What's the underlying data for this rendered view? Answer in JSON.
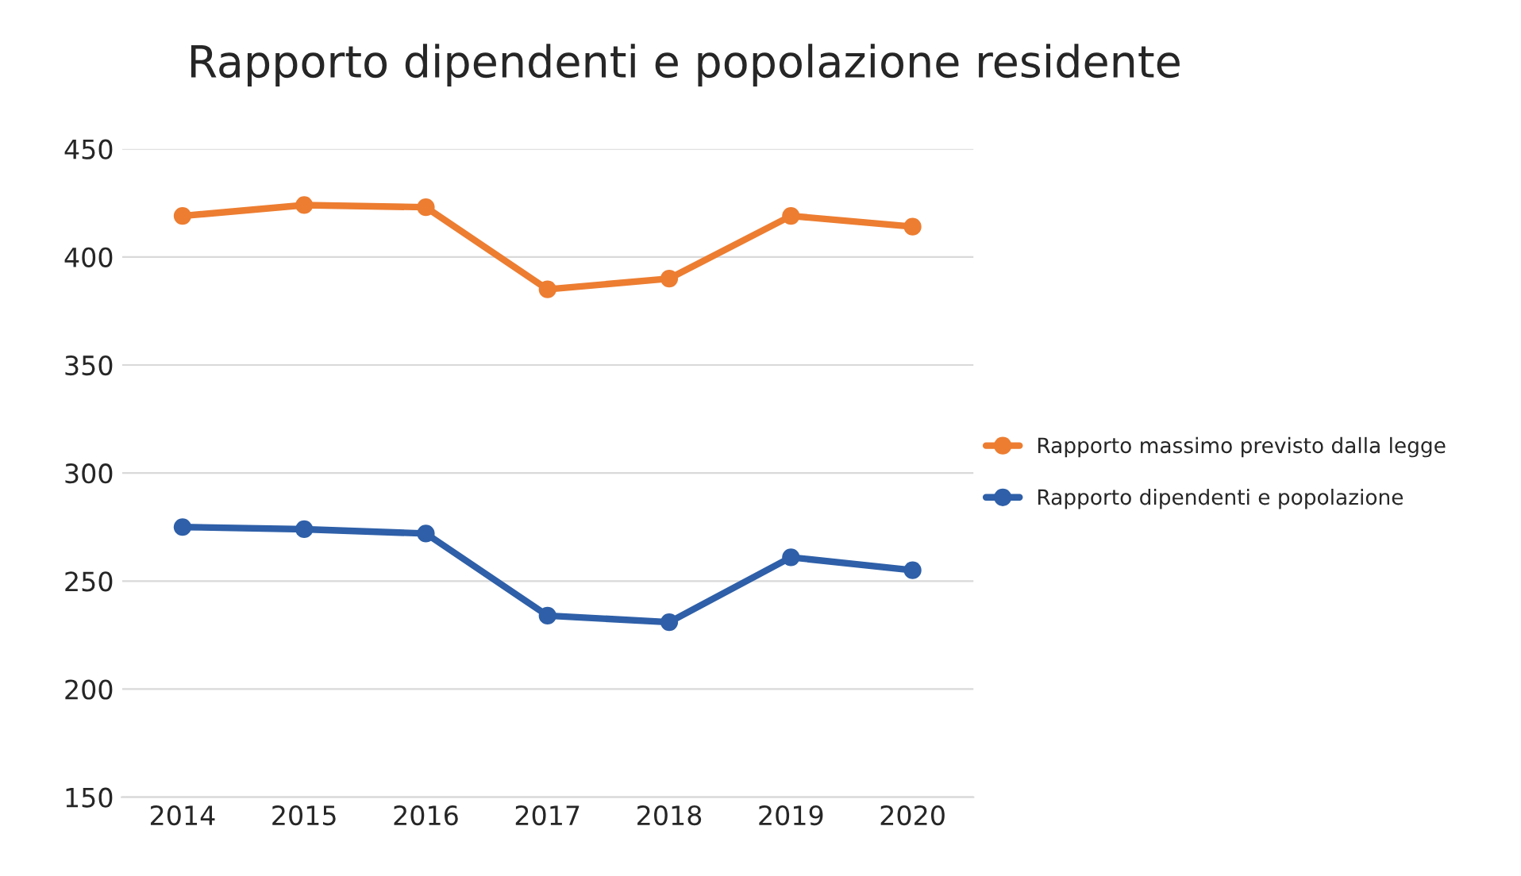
{
  "chart_data": {
    "type": "line",
    "title": "Rapporto dipendenti e popolazione residente",
    "categories": [
      "2014",
      "2015",
      "2016",
      "2017",
      "2018",
      "2019",
      "2020"
    ],
    "series": [
      {
        "name": "Rapporto massimo previsto dalla legge",
        "color": "#ed7d31",
        "values": [
          419,
          424,
          423,
          385,
          390,
          419,
          414
        ]
      },
      {
        "name": "Rapporto dipendenti e popolazione",
        "color": "#2e5fa8",
        "values": [
          275,
          274,
          272,
          234,
          231,
          261,
          255
        ]
      }
    ],
    "ylim": [
      150,
      450
    ],
    "yticks": [
      150,
      200,
      250,
      300,
      350,
      400,
      450
    ],
    "grid": "y",
    "legend": "right",
    "marker": "circle",
    "line_style": "solid"
  }
}
